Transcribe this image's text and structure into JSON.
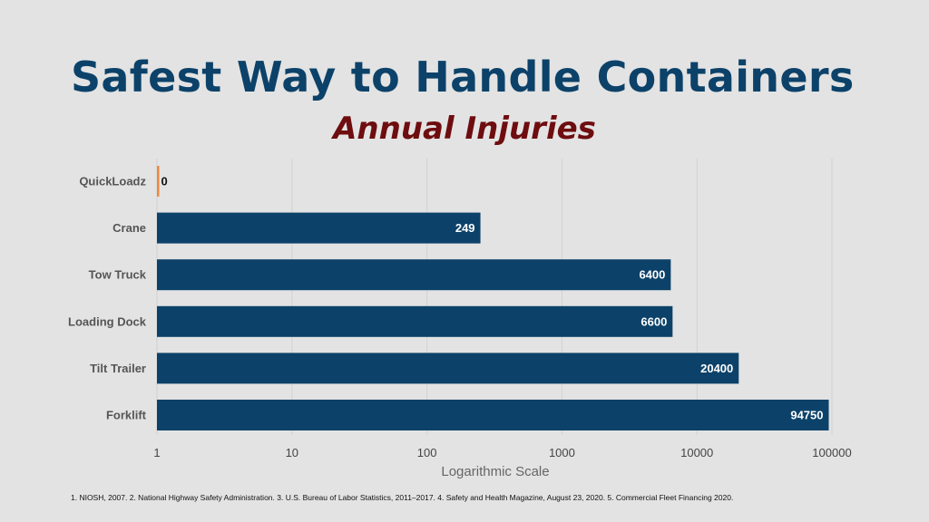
{
  "slide": {
    "title": "Safest Way to Handle Containers",
    "footnote": "1. NIOSH, 2007. 2. National Highway Safety Administration. 3. U.S. Bureau of Labor Statistics, 2011–2017. 4. Safety and Health Magazine, August 23, 2020. 5. Commercial Fleet Financing 2020."
  },
  "chart_data": {
    "type": "bar",
    "orientation": "horizontal",
    "title": "Annual Injuries",
    "xlabel": "Logarithmic Scale",
    "ylabel": "",
    "x_scale": "log",
    "xlim": [
      1,
      100000
    ],
    "x_ticks": [
      "1",
      "10",
      "100",
      "1000",
      "10000",
      "100000"
    ],
    "grid": true,
    "categories": [
      "QuickLoadz",
      "Crane",
      "Tow Truck",
      "Loading Dock",
      "Tilt Trailer",
      "Forklift"
    ],
    "values": [
      0,
      249,
      6400,
      6600,
      20400,
      94750
    ],
    "bar_colors": [
      "#f0883e",
      "#0c4269",
      "#0c4269",
      "#0c4269",
      "#0c4269",
      "#0c4269"
    ],
    "colors": {
      "title": "#0c4269",
      "chart_title": "#6e0d0f",
      "background": "#e3e3e3"
    }
  }
}
